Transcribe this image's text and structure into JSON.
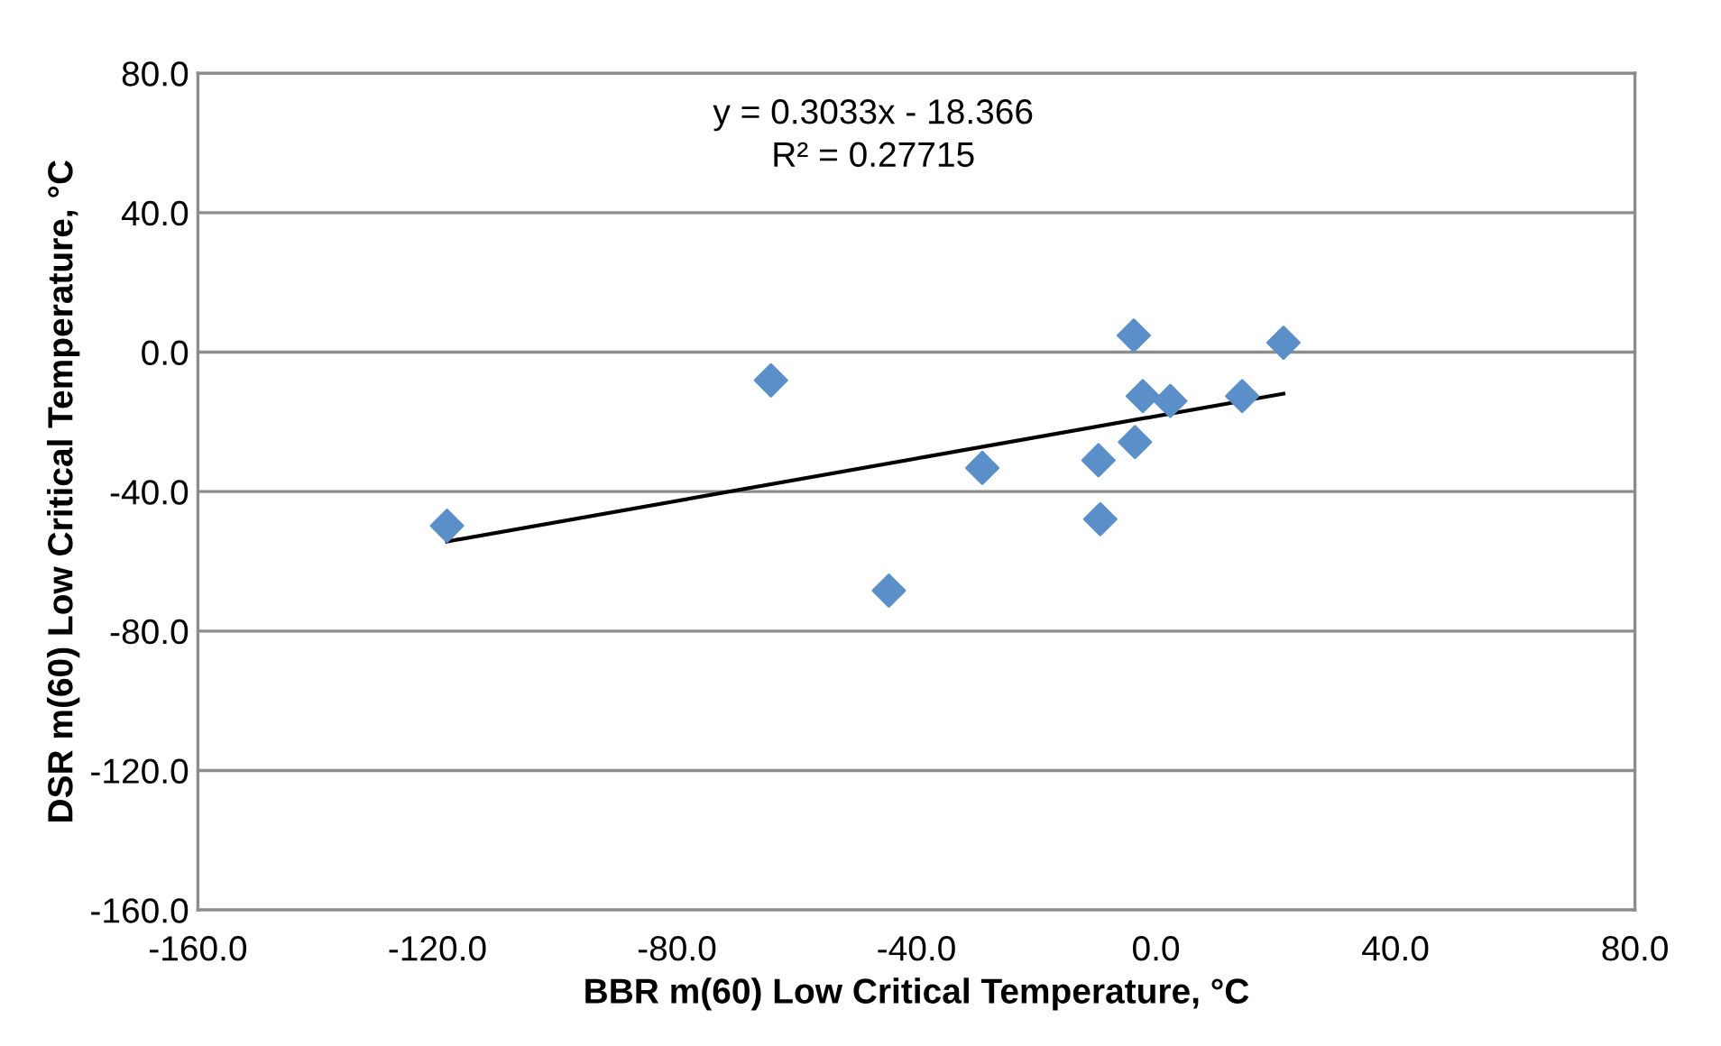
{
  "chart_data": {
    "type": "scatter",
    "xlabel": "BBR m(60) Low Critical Temperature, °C",
    "ylabel": "DSR m(60) Low Critical Temperature, °C",
    "annotations": [
      "y = 0.3033x - 18.366",
      "R² = 0.27715"
    ],
    "series": [
      {
        "color": "#5b8fc9",
        "marker": "diamond",
        "x": [
          -118.4,
          -64.3,
          -44.6,
          -29.0,
          -9.6,
          -9.3,
          -3.7,
          -3.5,
          -2.2,
          2.4,
          14.4,
          21.3
        ],
        "values": [
          -49.8,
          -8.1,
          -68.4,
          -33.2,
          -31.0,
          -47.9,
          4.8,
          -25.8,
          -12.6,
          -14.0,
          -12.6,
          2.7
        ]
      },
      {
        "type": "line",
        "color": "#000000",
        "marker": "none",
        "line_style": "solid",
        "x": [
          -118.4,
          21.3
        ],
        "values": [
          -54.3,
          -11.9
        ]
      }
    ],
    "xlim": [
      -160,
      80
    ],
    "xticks": [
      {
        "value": -160,
        "label": "-160.0"
      },
      {
        "value": -120,
        "label": "-120.0"
      },
      {
        "value": -80,
        "label": "-80.0"
      },
      {
        "value": -40,
        "label": "-40.0"
      },
      {
        "value": 0,
        "label": "0.0"
      },
      {
        "value": 40,
        "label": "40.0"
      },
      {
        "value": 80,
        "label": "80.0"
      }
    ],
    "ylim": [
      -160,
      80
    ],
    "yticks": [
      {
        "value": -160,
        "label": "-160.0"
      },
      {
        "value": -120,
        "label": "-120.0"
      },
      {
        "value": -80,
        "label": "-80.0"
      },
      {
        "value": -40,
        "label": "-40.0"
      },
      {
        "value": 0,
        "label": "0.0"
      },
      {
        "value": 40,
        "label": "40.0"
      },
      {
        "value": 80,
        "label": "80.0"
      }
    ],
    "grid": "y",
    "legend": false
  }
}
